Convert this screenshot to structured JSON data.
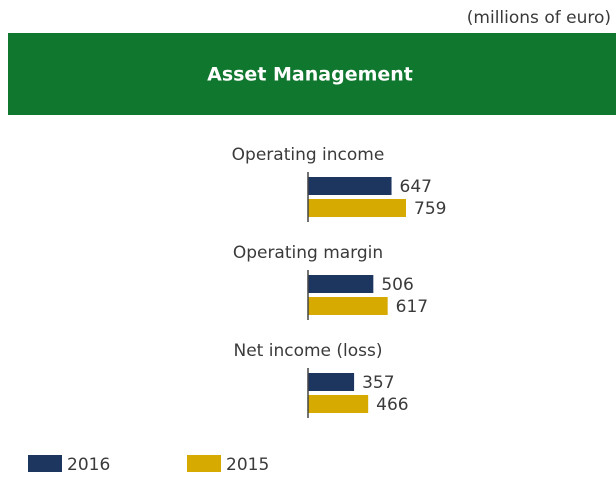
{
  "chart_data": {
    "type": "bar",
    "unit_note": "(millions of euro)",
    "title": "Asset Management",
    "categories": [
      "Operating income",
      "Operating margin",
      "Net income (loss)"
    ],
    "series": [
      {
        "name": "2016",
        "color": "#1d3660",
        "values": [
          647,
          506,
          357
        ]
      },
      {
        "name": "2015",
        "color": "#d6aa00",
        "values": [
          759,
          617,
          466
        ]
      }
    ]
  }
}
